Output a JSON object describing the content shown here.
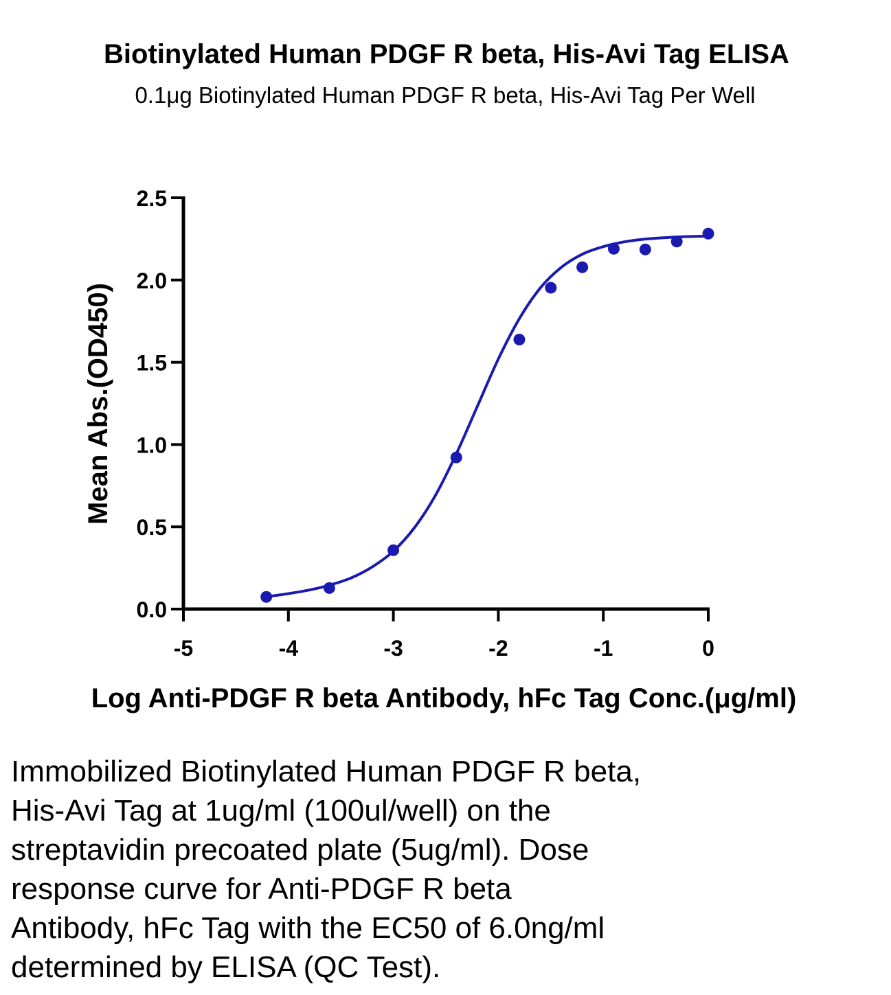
{
  "chart_data": {
    "type": "scatter",
    "title": "Biotinylated Human PDGF R beta, His-Avi Tag ELISA",
    "subtitle": "0.1μg Biotinylated Human PDGF R beta, His-Avi Tag Per Well",
    "xlabel": "Log Anti-PDGF R beta Antibody, hFc Tag Conc.(μg/ml)",
    "ylabel": "Mean Abs.(OD450)",
    "xlim": [
      -5,
      0
    ],
    "ylim": [
      0,
      2.5
    ],
    "x_ticks": [
      "-5",
      "-4",
      "-3",
      "-2",
      "-1",
      "0"
    ],
    "y_ticks": [
      "0.0",
      "0.5",
      "1.0",
      "1.5",
      "2.0",
      "2.5"
    ],
    "grid": false,
    "series_color": "#1a1ab0",
    "series": [
      {
        "x": [
          -4.21,
          -3.61,
          -3.0,
          -2.4,
          -1.8,
          -1.5,
          -1.2,
          -0.9,
          -0.6,
          -0.3,
          0.0
        ],
        "y": [
          0.074,
          0.128,
          0.358,
          0.922,
          1.638,
          1.953,
          2.078,
          2.19,
          2.186,
          2.234,
          2.282
        ],
        "fit": "4PL",
        "fit_curve": {
          "x": [
            -4.21,
            -4.0,
            -3.8,
            -3.6,
            -3.4,
            -3.2,
            -3.0,
            -2.8,
            -2.6,
            -2.4,
            -2.2,
            -2.0,
            -1.8,
            -1.6,
            -1.4,
            -1.2,
            -1.0,
            -0.8,
            -0.6,
            -0.4,
            -0.2,
            0.0
          ],
          "y": [
            0.075,
            0.094,
            0.116,
            0.147,
            0.19,
            0.257,
            0.352,
            0.494,
            0.69,
            0.944,
            1.232,
            1.52,
            1.765,
            1.952,
            2.077,
            2.157,
            2.203,
            2.232,
            2.249,
            2.258,
            2.264,
            2.267
          ]
        }
      }
    ]
  },
  "caption": {
    "lines": [
      "Immobilized Biotinylated Human PDGF R beta,",
      "His-Avi Tag at 1ug/ml (100ul/well) on the",
      "streptavidin precoated plate (5ug/ml). Dose",
      "response curve for Anti-PDGF R beta",
      "Antibody, hFc Tag with the EC50 of 6.0ng/ml",
      "determined by ELISA (QC Test)."
    ]
  }
}
